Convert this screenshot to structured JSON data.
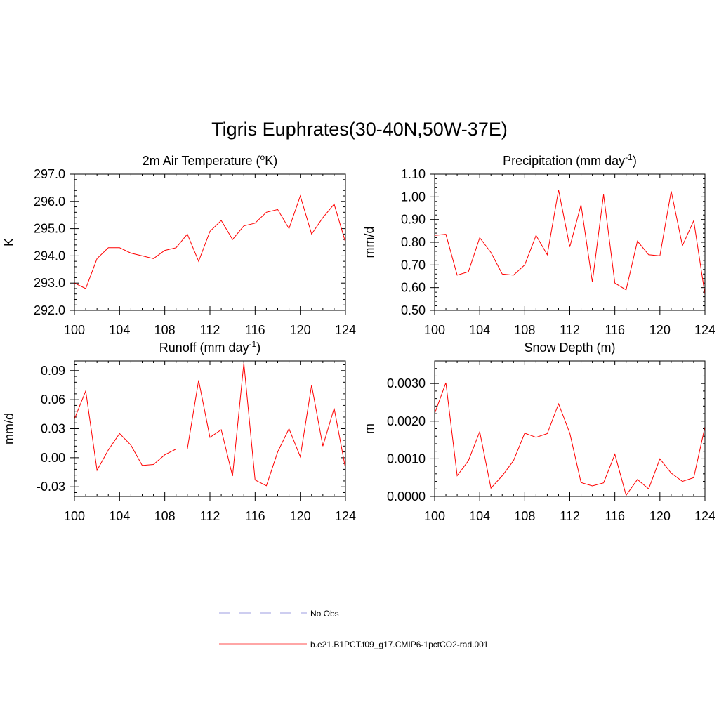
{
  "figure": {
    "title": "Tigris Euphrates(30-40N,50W-37E)"
  },
  "legend": {
    "placement": "bottom-center",
    "entries": [
      {
        "label": "No Obs",
        "color": "#b0b0e8",
        "dash": "dashed"
      },
      {
        "label": "b.e21.B1PCT.f09_g17.CMIP6-1pctCO2-rad.001",
        "color": "#ff7070",
        "dash": "solid"
      }
    ]
  },
  "chart_data": [
    {
      "type": "line",
      "title": "2m Air Temperature (",
      "title_sup": "o",
      "title_after": "K)",
      "ylabel": "K",
      "xlim": [
        100,
        124
      ],
      "xticks": [
        100,
        104,
        108,
        112,
        116,
        120,
        124
      ],
      "ylim": [
        292.0,
        297.0
      ],
      "yticks": [
        292.0,
        293.0,
        294.0,
        295.0,
        296.0,
        297.0
      ],
      "ytick_labels": [
        "292.0",
        "293.0",
        "294.0",
        "295.0",
        "296.0",
        "297.0"
      ],
      "series": [
        {
          "color": "#ff0000",
          "x": [
            100,
            101,
            102,
            103,
            104,
            105,
            106,
            107,
            108,
            109,
            110,
            111,
            112,
            113,
            114,
            115,
            116,
            117,
            118,
            119,
            120,
            121,
            122,
            123,
            124
          ],
          "y": [
            293.0,
            292.8,
            293.9,
            294.3,
            294.3,
            294.1,
            294.0,
            293.9,
            294.2,
            294.3,
            294.8,
            293.8,
            294.9,
            295.3,
            294.6,
            295.1,
            295.2,
            295.6,
            295.7,
            295.0,
            296.2,
            294.8,
            295.4,
            295.9,
            294.5
          ]
        }
      ]
    },
    {
      "type": "line",
      "title": "Precipitation (mm day",
      "title_sup": "-1",
      "title_after": ")",
      "ylabel": "mm/d",
      "xlim": [
        100,
        124
      ],
      "xticks": [
        100,
        104,
        108,
        112,
        116,
        120,
        124
      ],
      "ylim": [
        0.5,
        1.1
      ],
      "yticks": [
        0.5,
        0.6,
        0.7,
        0.8,
        0.9,
        1.0,
        1.1
      ],
      "ytick_labels": [
        "0.50",
        "0.60",
        "0.70",
        "0.80",
        "0.90",
        "1.00",
        "1.10"
      ],
      "series": [
        {
          "color": "#ff0000",
          "x": [
            100,
            101,
            102,
            103,
            104,
            105,
            106,
            107,
            108,
            109,
            110,
            111,
            112,
            113,
            114,
            115,
            116,
            117,
            118,
            119,
            120,
            121,
            122,
            123,
            124
          ],
          "y": [
            0.83,
            0.835,
            0.655,
            0.67,
            0.82,
            0.755,
            0.66,
            0.655,
            0.7,
            0.83,
            0.745,
            1.03,
            0.78,
            0.965,
            0.625,
            1.01,
            0.62,
            0.59,
            0.805,
            0.745,
            0.74,
            1.025,
            0.785,
            0.895,
            0.57
          ]
        }
      ]
    },
    {
      "type": "line",
      "title": "Runoff (mm day",
      "title_sup": "-1",
      "title_after": ")",
      "ylabel": "mm/d",
      "xlim": [
        100,
        124
      ],
      "xticks": [
        100,
        104,
        108,
        112,
        116,
        120,
        124
      ],
      "ylim": [
        -0.04,
        0.1
      ],
      "yticks": [
        -0.03,
        0.0,
        0.03,
        0.06,
        0.09
      ],
      "ytick_labels": [
        "-0.03",
        "0.00",
        "0.03",
        "0.06",
        "0.09"
      ],
      "series": [
        {
          "color": "#ff0000",
          "x": [
            100,
            101,
            102,
            103,
            104,
            105,
            106,
            107,
            108,
            109,
            110,
            111,
            112,
            113,
            114,
            115,
            116,
            117,
            118,
            119,
            120,
            121,
            122,
            123,
            124
          ],
          "y": [
            0.04,
            0.069,
            -0.013,
            0.008,
            0.025,
            0.013,
            -0.008,
            -0.007,
            0.003,
            0.009,
            0.009,
            0.08,
            0.021,
            0.029,
            -0.019,
            0.098,
            -0.023,
            -0.029,
            0.006,
            0.03,
            0.001,
            0.075,
            0.012,
            0.051,
            -0.011
          ]
        }
      ]
    },
    {
      "type": "line",
      "title": "Snow Depth (m)",
      "title_sup": "",
      "title_after": "",
      "ylabel": "m",
      "xlim": [
        100,
        124
      ],
      "xticks": [
        100,
        104,
        108,
        112,
        116,
        120,
        124
      ],
      "ylim": [
        0.0,
        0.0036
      ],
      "yticks": [
        0.0,
        0.001,
        0.002,
        0.003
      ],
      "ytick_labels": [
        "0.0000",
        "0.0010",
        "0.0020",
        "0.0030"
      ],
      "series": [
        {
          "color": "#ff0000",
          "x": [
            100,
            101,
            102,
            103,
            104,
            105,
            106,
            107,
            108,
            109,
            110,
            111,
            112,
            113,
            114,
            115,
            116,
            117,
            118,
            119,
            120,
            121,
            122,
            123,
            124
          ],
          "y": [
            0.0022,
            0.00302,
            0.00055,
            0.00095,
            0.00172,
            0.00022,
            0.00055,
            0.00095,
            0.00168,
            0.00157,
            0.00167,
            0.00246,
            0.00168,
            0.00037,
            0.00028,
            0.00036,
            0.00112,
            3e-05,
            0.00045,
            0.0002,
            0.001,
            0.00062,
            0.0004,
            0.0005,
            0.00185
          ]
        }
      ]
    }
  ]
}
